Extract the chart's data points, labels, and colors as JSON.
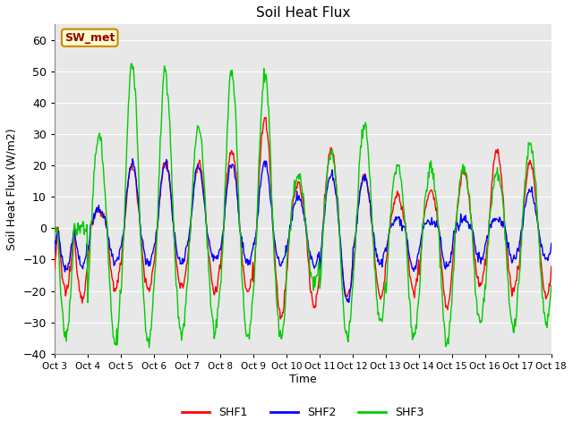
{
  "title": "Soil Heat Flux",
  "ylabel": "Soil Heat Flux (W/m2)",
  "xlabel": "Time",
  "ylim": [
    -40,
    65
  ],
  "yticks": [
    -40,
    -30,
    -20,
    -10,
    0,
    10,
    20,
    30,
    40,
    50,
    60
  ],
  "bg_color": "#ffffff",
  "plot_bg": "#e8e8e8",
  "grid_color": "#ffffff",
  "line_colors": {
    "SHF1": "red",
    "SHF2": "blue",
    "SHF3": "#00cc00"
  },
  "annotation_text": "SW_met",
  "annotation_bg": "#ffffcc",
  "annotation_border": "#cc8800",
  "annotation_text_color": "#990000",
  "x_tick_labels": [
    "Oct 3",
    "Oct 4",
    "Oct 5",
    "Oct 6",
    "Oct 7",
    "Oct 8",
    "Oct 9",
    "Oct 10",
    "Oct 11",
    "Oct 12",
    "Oct 13",
    "Oct 14",
    "Oct 15",
    "Oct 16",
    "Oct 17",
    "Oct 18"
  ],
  "n_days": 15,
  "points_per_day": 48,
  "figsize": [
    6.4,
    4.8
  ],
  "dpi": 100
}
